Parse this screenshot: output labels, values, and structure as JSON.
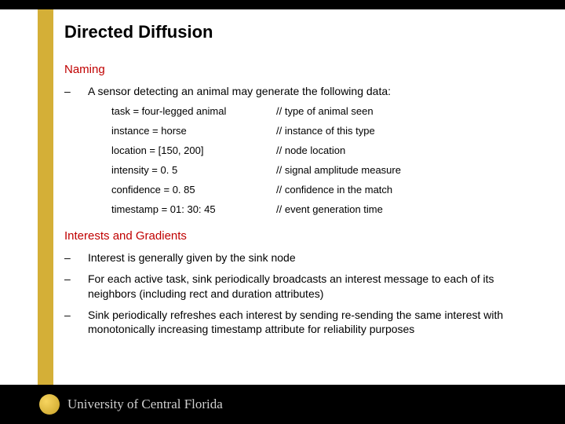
{
  "colors": {
    "top_bar": "#000000",
    "gold_bar": "#d4af37",
    "heading_red": "#c00000",
    "body_text": "#000000",
    "footer_bg": "#000000",
    "footer_text": "#cfcfcf"
  },
  "title": "Directed Diffusion",
  "section1": {
    "heading": "Naming",
    "intro": "A sensor detecting an animal may generate the following data:",
    "rows": [
      {
        "key": "task = four-legged animal",
        "comment": "// type of animal seen"
      },
      {
        "key": "instance = horse",
        "comment": "// instance of this type"
      },
      {
        "key": "location = [150, 200]",
        "comment": "// node location"
      },
      {
        "key": "intensity = 0. 5",
        "comment": "// signal amplitude measure"
      },
      {
        "key": "confidence = 0. 85",
        "comment": "// confidence in the match"
      },
      {
        "key": "timestamp = 01: 30: 45",
        "comment": "// event generation time"
      }
    ]
  },
  "section2": {
    "heading": "Interests and Gradients",
    "bullets": [
      "Interest is generally given by the sink node",
      "For each active task, sink periodically broadcasts an interest message to each of its neighbors (including rect and duration attributes)",
      "Sink periodically refreshes each interest by sending re-sending the same interest with monotonically increasing timestamp attribute for reliability purposes"
    ]
  },
  "footer": {
    "university": "University of Central Florida"
  }
}
